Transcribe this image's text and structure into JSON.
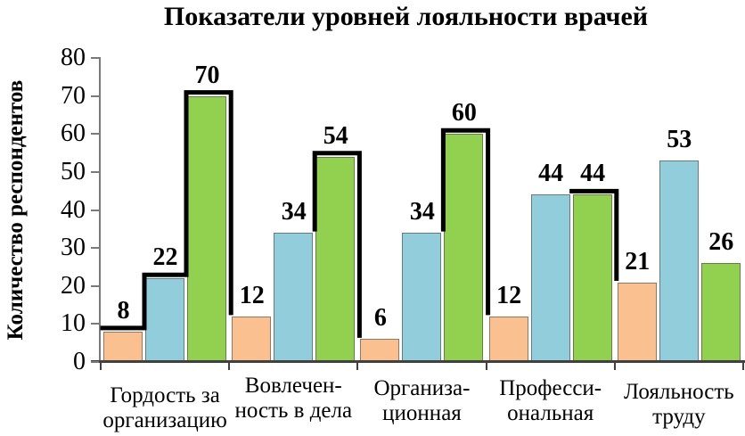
{
  "chart_data": {
    "type": "bar",
    "title": "Показатели уровней лояльности врачей",
    "ylabel": "Количество респондентов",
    "xlabel": "",
    "ylim": [
      0,
      80
    ],
    "ytick_step": 10,
    "grid": false,
    "legend": "none",
    "background": "#FFFFFF",
    "axis_color": "#7A7A7A",
    "baseline_color": "#404040",
    "text_color": "#000000",
    "categories": [
      "Гордость за\nорганизацию",
      "Вовлечен-\nность в дела",
      "Организа-\nционная",
      "Професси-\nональная",
      "Лояльность\nтруду"
    ],
    "series": [
      {
        "name": "orange",
        "color": "#FAC090",
        "values": [
          8,
          12,
          6,
          12,
          21
        ]
      },
      {
        "name": "blue",
        "color": "#92CDDC",
        "values": [
          22,
          34,
          34,
          44,
          53
        ]
      },
      {
        "name": "green",
        "color": "#92D050",
        "values": [
          70,
          54,
          60,
          44,
          26
        ]
      }
    ],
    "bar_value_labels": [
      [
        8,
        22,
        70
      ],
      [
        12,
        34,
        54
      ],
      [
        6,
        34,
        60
      ],
      [
        12,
        44,
        44
      ],
      [
        21,
        53,
        26
      ]
    ],
    "frontier": {
      "color": "#000000",
      "thickness": 5,
      "note": "thick black step line tracing tops of bars",
      "point_format": "[group_index, bar_boundary_0to3, value]",
      "polylines": [
        [
          [
            0,
            0,
            8
          ],
          [
            0,
            1,
            8
          ],
          [
            0,
            1,
            22
          ],
          [
            0,
            2,
            22
          ],
          [
            0,
            2,
            70
          ],
          [
            1,
            0,
            70
          ],
          [
            1,
            0,
            12
          ]
        ],
        [
          [
            1,
            2,
            34
          ],
          [
            1,
            2,
            54
          ],
          [
            2,
            0,
            54
          ],
          [
            2,
            0,
            6
          ]
        ],
        [
          [
            2,
            2,
            34
          ],
          [
            2,
            2,
            60
          ],
          [
            3,
            0,
            60
          ],
          [
            3,
            0,
            12
          ]
        ],
        [
          [
            3,
            2,
            44
          ],
          [
            4,
            0,
            44
          ],
          [
            4,
            0,
            21
          ]
        ]
      ]
    }
  }
}
